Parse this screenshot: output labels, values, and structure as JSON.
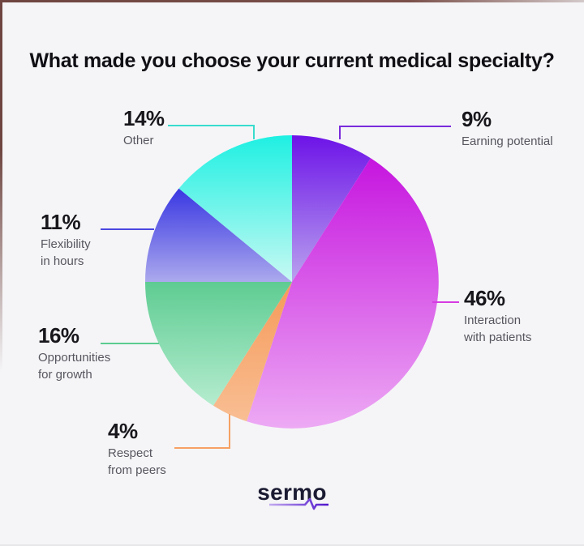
{
  "title": "What made you choose your current medical specialty?",
  "brand": {
    "name": "sermo"
  },
  "chart_data": {
    "type": "pie",
    "title": "What made you choose your current medical specialty?",
    "start_angle_deg": 0,
    "direction": "clockwise",
    "legend_position": "callout-labels",
    "slices": [
      {
        "id": "earning-potential",
        "label": "Earning potential",
        "value_pct": 9,
        "color_top": "#6D13E8",
        "color_bottom": "#B9A2EE"
      },
      {
        "id": "interaction-with-patients",
        "label": "Interaction with patients",
        "value_pct": 46,
        "color_top": "#C615DF",
        "color_bottom": "#EDAAF4"
      },
      {
        "id": "respect-from-peers",
        "label": "Respect from peers",
        "value_pct": 4,
        "color_top": "#F69A59",
        "color_bottom": "#F8BE93"
      },
      {
        "id": "opportunities-for-growth",
        "label": "Opportunities for growth",
        "value_pct": 16,
        "color_top": "#5ECC92",
        "color_bottom": "#B5ECCF"
      },
      {
        "id": "flexibility-in-hours",
        "label": "Flexibility in hours",
        "value_pct": 11,
        "color_top": "#3937E2",
        "color_bottom": "#ABA9ED"
      },
      {
        "id": "other",
        "label": "Other",
        "value_pct": 14,
        "color_top": "#1EF0E2",
        "color_bottom": "#C8F9F3"
      }
    ]
  },
  "callouts": {
    "other": {
      "pct": "14%",
      "name": "Other"
    },
    "earning": {
      "pct": "9%",
      "name": "Earning potential"
    },
    "interaction": {
      "pct": "46%",
      "name": "Interaction\nwith patients"
    },
    "flexibility": {
      "pct": "11%",
      "name": "Flexibility\nin hours"
    },
    "growth": {
      "pct": "16%",
      "name": "Opportunities\nfor growth"
    },
    "respect": {
      "pct": "4%",
      "name": "Respect\nfrom peers"
    }
  }
}
